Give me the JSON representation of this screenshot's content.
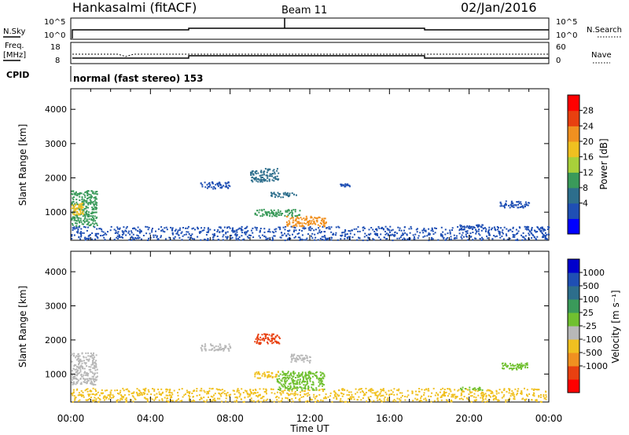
{
  "header": {
    "station": "Hankasalmi (fitACF)",
    "beam": "Beam 11",
    "date": "02/Jan/2016"
  },
  "status_panels": {
    "nsky_label": "N.Sky",
    "nsky_ticks": [
      "10^5",
      "10^0"
    ],
    "nsearch_label": "N.Search",
    "nsearch_ticks": [
      "10^5",
      "10^0"
    ],
    "freq_label": "Freq.",
    "freq_unit": "[MHz]",
    "freq_ticks": [
      "18",
      "8"
    ],
    "nave_label": "Nave",
    "nave_ticks": [
      "60",
      "0"
    ],
    "cpid_label": "CPID",
    "cpid_text": "normal (fast stereo) 153"
  },
  "chart_data": [
    {
      "type": "heatmap",
      "title": "",
      "xlabel": "Time UT",
      "ylabel": "Slant Range [km]",
      "x_ticks": [
        "00:00",
        "04:00",
        "08:00",
        "12:00",
        "16:00",
        "20:00",
        "00:00"
      ],
      "xlim_hours": [
        0,
        24
      ],
      "y_ticks": [
        1000,
        2000,
        3000,
        4000
      ],
      "ylim": [
        180,
        4600
      ],
      "colorbar": {
        "label": "Power [dB]",
        "ticks": [
          "28",
          "24",
          "20",
          "16",
          "12",
          "8",
          "4"
        ],
        "levels_bottom_to_top": [
          0,
          4,
          8,
          12,
          16,
          20,
          24,
          28,
          30
        ],
        "colors_bottom_to_top": [
          "#0000ff",
          "#1f4fb4",
          "#2d6e8c",
          "#3a9a5a",
          "#a8d03a",
          "#f0c020",
          "#f09020",
          "#e84010",
          "#ff0000"
        ]
      },
      "echo_regions": [
        {
          "t0": 0.0,
          "t1": 1.3,
          "r0": 600,
          "r1": 1650,
          "value": 14
        },
        {
          "t0": 0.0,
          "t1": 0.6,
          "r0": 900,
          "r1": 1300,
          "value": 20
        },
        {
          "t0": 0.0,
          "t1": 24.0,
          "r0": 200,
          "r1": 600,
          "value": 6
        },
        {
          "t0": 6.5,
          "t1": 8.0,
          "r0": 1700,
          "r1": 1900,
          "value": 5
        },
        {
          "t0": 9.0,
          "t1": 10.4,
          "r0": 1900,
          "r1": 2300,
          "value": 10
        },
        {
          "t0": 9.2,
          "t1": 11.5,
          "r0": 900,
          "r1": 1100,
          "value": 14
        },
        {
          "t0": 10.8,
          "t1": 12.8,
          "r0": 600,
          "r1": 900,
          "value": 26
        },
        {
          "t0": 10.0,
          "t1": 11.3,
          "r0": 1450,
          "r1": 1600,
          "value": 8
        },
        {
          "t0": 13.5,
          "t1": 14.0,
          "r0": 1750,
          "r1": 1850,
          "value": 6
        },
        {
          "t0": 21.5,
          "t1": 23.0,
          "r0": 1150,
          "r1": 1350,
          "value": 6
        },
        {
          "t0": 19.5,
          "t1": 20.7,
          "r0": 500,
          "r1": 650,
          "value": 5
        }
      ]
    },
    {
      "type": "heatmap",
      "title": "",
      "xlabel": "Time UT",
      "ylabel": "Slant Range [km]",
      "x_ticks": [
        "00:00",
        "04:00",
        "08:00",
        "12:00",
        "16:00",
        "20:00",
        "00:00"
      ],
      "xlim_hours": [
        0,
        24
      ],
      "y_ticks": [
        1000,
        2000,
        3000,
        4000
      ],
      "ylim": [
        180,
        4600
      ],
      "colorbar": {
        "label": "Velocity [m s⁻¹]",
        "ticks": [
          "1000",
          "500",
          "100",
          "25",
          "-25",
          "-100",
          "-500",
          "-1000"
        ],
        "colors_bottom_to_top": [
          "#ff0000",
          "#e84010",
          "#f09020",
          "#f0c020",
          "#b8b8b8",
          "#70c030",
          "#3a9a5a",
          "#2d6e8c",
          "#1f4fb4",
          "#0000cc"
        ]
      },
      "echo_regions": [
        {
          "t0": 0.0,
          "t1": 1.3,
          "r0": 700,
          "r1": 1650,
          "value": "ground-scatter"
        },
        {
          "t0": 0.0,
          "t1": 24.0,
          "r0": 200,
          "r1": 600,
          "value": -60
        },
        {
          "t0": 6.5,
          "t1": 8.0,
          "r0": 1700,
          "r1": 1900,
          "value": "ground-scatter"
        },
        {
          "t0": 9.2,
          "t1": 10.5,
          "r0": 1900,
          "r1": 2200,
          "value": -700
        },
        {
          "t0": 9.2,
          "t1": 10.4,
          "r0": 900,
          "r1": 1100,
          "value": -80
        },
        {
          "t0": 10.3,
          "t1": 12.7,
          "r0": 550,
          "r1": 1100,
          "value": 60
        },
        {
          "t0": 11.0,
          "t1": 12.0,
          "r0": 1350,
          "r1": 1600,
          "value": "ground-scatter"
        },
        {
          "t0": 21.5,
          "t1": 23.0,
          "r0": 1150,
          "r1": 1350,
          "value": 50
        },
        {
          "t0": 19.5,
          "t1": 20.7,
          "r0": 550,
          "r1": 650,
          "value": 60
        }
      ]
    }
  ]
}
